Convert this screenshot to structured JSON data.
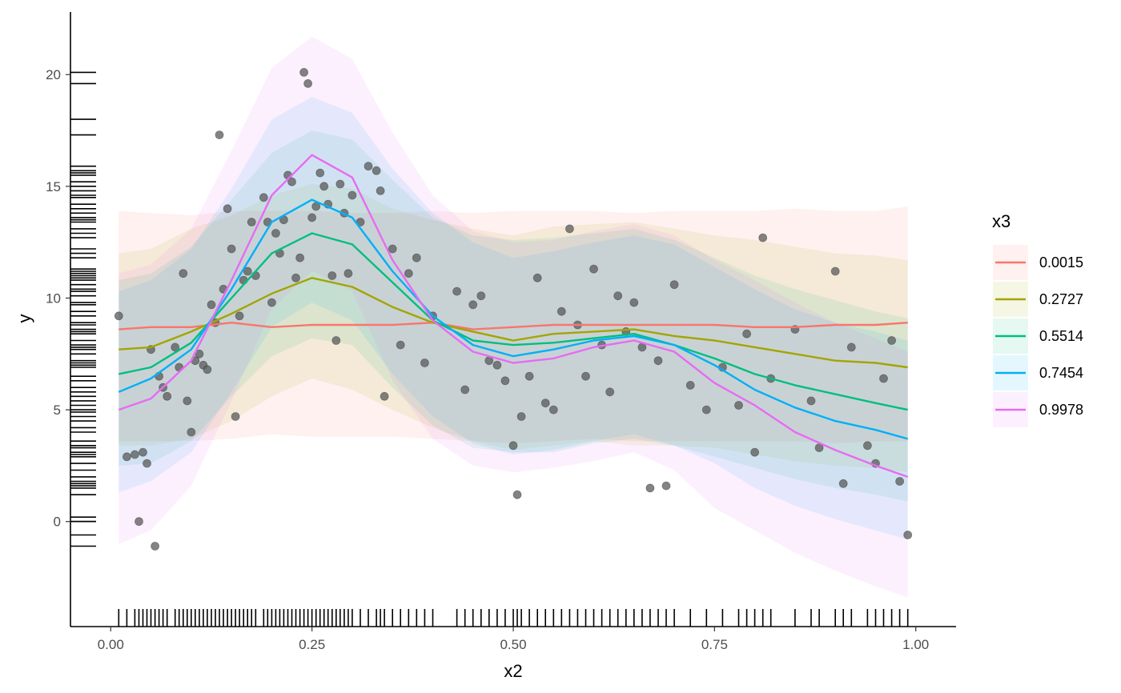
{
  "chart_data": {
    "type": "line",
    "xlabel": "x2",
    "ylabel": "y",
    "xlim": [
      -0.05,
      1.05
    ],
    "ylim": [
      -4.7,
      22.8
    ],
    "x_ticks": [
      {
        "value": 0.0,
        "label": "0.00"
      },
      {
        "value": 0.25,
        "label": "0.25"
      },
      {
        "value": 0.5,
        "label": "0.50"
      },
      {
        "value": 0.75,
        "label": "0.75"
      },
      {
        "value": 1.0,
        "label": "1.00"
      }
    ],
    "y_ticks": [
      {
        "value": 0,
        "label": "0"
      },
      {
        "value": 5,
        "label": "5"
      },
      {
        "value": 10,
        "label": "10"
      },
      {
        "value": 15,
        "label": "15"
      },
      {
        "value": 20,
        "label": "20"
      }
    ],
    "grid": false,
    "legend": {
      "title": "x3",
      "position": "right"
    },
    "series": [
      {
        "name": "0.0015",
        "color": "#F8766D",
        "x": [
          0.01,
          0.05,
          0.1,
          0.15,
          0.2,
          0.25,
          0.3,
          0.35,
          0.4,
          0.45,
          0.5,
          0.55,
          0.6,
          0.65,
          0.7,
          0.75,
          0.8,
          0.85,
          0.9,
          0.95,
          0.99
        ],
        "y": [
          8.6,
          8.7,
          8.7,
          8.9,
          8.7,
          8.8,
          8.8,
          8.8,
          8.9,
          8.6,
          8.7,
          8.8,
          8.8,
          8.8,
          8.8,
          8.8,
          8.7,
          8.7,
          8.8,
          8.8,
          8.9
        ],
        "lower": [
          3.6,
          3.6,
          3.6,
          3.7,
          3.9,
          3.8,
          3.8,
          3.8,
          3.7,
          3.6,
          3.5,
          3.6,
          3.7,
          3.6,
          3.6,
          3.6,
          3.6,
          3.6,
          3.5,
          3.6,
          3.6
        ],
        "upper": [
          13.9,
          13.8,
          13.7,
          13.9,
          13.9,
          13.9,
          13.8,
          13.8,
          13.9,
          13.8,
          13.9,
          13.9,
          13.9,
          13.8,
          13.9,
          13.9,
          13.9,
          14.0,
          13.9,
          13.9,
          14.1
        ]
      },
      {
        "name": "0.2727",
        "color": "#A3A500",
        "x": [
          0.01,
          0.05,
          0.1,
          0.15,
          0.2,
          0.25,
          0.3,
          0.35,
          0.4,
          0.45,
          0.5,
          0.55,
          0.6,
          0.65,
          0.7,
          0.75,
          0.8,
          0.85,
          0.9,
          0.95,
          0.99
        ],
        "y": [
          7.7,
          7.8,
          8.5,
          9.3,
          10.2,
          10.9,
          10.5,
          9.6,
          8.9,
          8.5,
          8.1,
          8.4,
          8.5,
          8.6,
          8.3,
          8.1,
          7.8,
          7.5,
          7.2,
          7.1,
          6.9
        ],
        "lower": [
          3.4,
          3.4,
          3.7,
          4.5,
          5.6,
          6.4,
          5.9,
          5.0,
          4.2,
          3.6,
          3.2,
          3.4,
          3.6,
          3.4,
          3.4,
          3.3,
          3.0,
          2.7,
          2.5,
          2.4,
          2.2
        ],
        "upper": [
          12.0,
          12.2,
          13.1,
          13.7,
          14.6,
          15.1,
          14.9,
          14.0,
          13.5,
          13.1,
          12.8,
          13.2,
          13.3,
          13.4,
          13.1,
          12.8,
          12.6,
          12.3,
          12.0,
          11.9,
          11.7
        ]
      },
      {
        "name": "0.5514",
        "color": "#00BF7D",
        "x": [
          0.01,
          0.05,
          0.1,
          0.15,
          0.2,
          0.25,
          0.3,
          0.35,
          0.4,
          0.45,
          0.5,
          0.55,
          0.6,
          0.65,
          0.7,
          0.75,
          0.8,
          0.85,
          0.9,
          0.95,
          0.99
        ],
        "y": [
          6.6,
          6.9,
          8.0,
          10.0,
          12.0,
          12.9,
          12.4,
          10.7,
          9.0,
          8.1,
          7.9,
          8.0,
          8.2,
          8.4,
          7.9,
          7.3,
          6.6,
          6.1,
          5.7,
          5.3,
          5.0
        ],
        "lower": [
          2.5,
          2.6,
          3.6,
          5.6,
          7.4,
          8.2,
          7.9,
          6.0,
          4.3,
          3.3,
          3.1,
          3.1,
          3.5,
          3.7,
          3.4,
          2.9,
          2.4,
          1.9,
          1.5,
          1.2,
          0.9
        ],
        "upper": [
          10.8,
          11.1,
          12.3,
          14.4,
          16.5,
          17.5,
          17.1,
          15.3,
          13.6,
          12.8,
          12.6,
          12.7,
          12.9,
          13.1,
          12.6,
          11.8,
          11.0,
          10.4,
          9.9,
          9.4,
          9.1
        ]
      },
      {
        "name": "0.7454",
        "color": "#00B0F6",
        "x": [
          0.01,
          0.05,
          0.1,
          0.15,
          0.2,
          0.25,
          0.3,
          0.35,
          0.4,
          0.45,
          0.5,
          0.55,
          0.6,
          0.65,
          0.7,
          0.75,
          0.8,
          0.85,
          0.9,
          0.95,
          0.99
        ],
        "y": [
          5.8,
          6.4,
          7.7,
          10.4,
          13.4,
          14.4,
          13.6,
          11.2,
          9.2,
          7.9,
          7.4,
          7.7,
          8.1,
          8.3,
          7.9,
          7.0,
          5.9,
          5.1,
          4.5,
          4.1,
          3.7
        ],
        "lower": [
          1.3,
          1.8,
          3.1,
          5.8,
          8.7,
          9.8,
          9.0,
          6.6,
          4.7,
          3.5,
          3.0,
          3.2,
          3.6,
          3.9,
          3.4,
          2.6,
          1.5,
          0.7,
          0.1,
          -0.4,
          -0.8
        ],
        "upper": [
          10.3,
          10.8,
          12.2,
          14.9,
          18.0,
          19.0,
          18.3,
          15.8,
          13.8,
          12.5,
          11.8,
          12.1,
          12.5,
          12.8,
          12.4,
          11.4,
          10.4,
          9.5,
          8.9,
          8.5,
          8.1
        ]
      },
      {
        "name": "0.9978",
        "color": "#E76BF3",
        "x": [
          0.01,
          0.05,
          0.1,
          0.15,
          0.2,
          0.25,
          0.3,
          0.35,
          0.4,
          0.45,
          0.5,
          0.55,
          0.6,
          0.65,
          0.7,
          0.75,
          0.8,
          0.85,
          0.9,
          0.95,
          0.99
        ],
        "y": [
          5.0,
          5.5,
          7.2,
          10.8,
          14.6,
          16.4,
          15.4,
          11.7,
          9.0,
          7.6,
          7.1,
          7.3,
          7.8,
          8.1,
          7.6,
          6.2,
          5.2,
          4.0,
          3.2,
          2.5,
          2.0
        ],
        "lower": [
          -1.0,
          -0.4,
          1.6,
          5.4,
          9.5,
          11.2,
          10.3,
          6.3,
          3.7,
          2.5,
          2.2,
          2.4,
          2.7,
          3.1,
          2.3,
          0.6,
          -0.4,
          -1.4,
          -2.2,
          -2.9,
          -3.4
        ],
        "upper": [
          11.1,
          11.5,
          13.1,
          16.6,
          20.3,
          21.7,
          20.7,
          17.4,
          14.6,
          13.0,
          12.5,
          12.6,
          13.0,
          13.3,
          12.8,
          11.7,
          10.8,
          9.8,
          8.9,
          8.2,
          7.6
        ]
      }
    ],
    "points": {
      "color": "#595959",
      "x": [
        0.01,
        0.02,
        0.03,
        0.035,
        0.04,
        0.045,
        0.05,
        0.055,
        0.06,
        0.065,
        0.07,
        0.08,
        0.085,
        0.09,
        0.095,
        0.1,
        0.105,
        0.11,
        0.115,
        0.12,
        0.125,
        0.13,
        0.135,
        0.14,
        0.145,
        0.15,
        0.155,
        0.16,
        0.165,
        0.17,
        0.175,
        0.18,
        0.19,
        0.195,
        0.2,
        0.205,
        0.21,
        0.215,
        0.22,
        0.225,
        0.23,
        0.235,
        0.24,
        0.245,
        0.25,
        0.255,
        0.26,
        0.265,
        0.27,
        0.275,
        0.28,
        0.285,
        0.29,
        0.295,
        0.3,
        0.31,
        0.32,
        0.33,
        0.335,
        0.34,
        0.35,
        0.36,
        0.37,
        0.38,
        0.39,
        0.4,
        0.43,
        0.44,
        0.45,
        0.46,
        0.47,
        0.48,
        0.49,
        0.5,
        0.505,
        0.51,
        0.52,
        0.53,
        0.54,
        0.55,
        0.56,
        0.57,
        0.58,
        0.59,
        0.6,
        0.61,
        0.62,
        0.63,
        0.64,
        0.65,
        0.66,
        0.67,
        0.68,
        0.69,
        0.7,
        0.72,
        0.74,
        0.76,
        0.78,
        0.79,
        0.8,
        0.81,
        0.82,
        0.85,
        0.87,
        0.88,
        0.9,
        0.91,
        0.92,
        0.94,
        0.95,
        0.96,
        0.97,
        0.98,
        0.99
      ],
      "y": [
        9.2,
        2.9,
        3.0,
        0.0,
        3.1,
        2.6,
        7.7,
        -1.1,
        6.5,
        6.0,
        5.6,
        7.8,
        6.9,
        11.1,
        5.4,
        4.0,
        7.2,
        7.5,
        7.0,
        6.8,
        9.7,
        8.9,
        17.3,
        10.4,
        14.0,
        12.2,
        4.7,
        9.2,
        10.8,
        11.2,
        13.4,
        11.0,
        14.5,
        13.4,
        9.8,
        12.9,
        12.0,
        13.5,
        15.5,
        15.2,
        10.9,
        11.8,
        20.1,
        19.6,
        13.6,
        14.1,
        15.6,
        15.0,
        14.2,
        11.0,
        8.1,
        15.1,
        13.8,
        11.1,
        14.6,
        13.4,
        15.9,
        15.7,
        14.8,
        5.6,
        12.2,
        7.9,
        11.1,
        11.8,
        7.1,
        9.2,
        10.3,
        5.9,
        9.7,
        10.1,
        7.2,
        7.0,
        6.3,
        3.4,
        1.2,
        4.7,
        6.5,
        10.9,
        5.3,
        5.0,
        9.4,
        13.1,
        8.8,
        6.5,
        11.3,
        7.9,
        5.8,
        10.1,
        8.5,
        9.8,
        7.8,
        1.5,
        7.2,
        1.6,
        10.6,
        6.1,
        5.0,
        6.9,
        5.2,
        8.4,
        3.1,
        12.7,
        6.4,
        8.6,
        5.4,
        3.3,
        11.2,
        1.7,
        7.8,
        3.4,
        2.6,
        6.4,
        8.1,
        1.8,
        -0.6
      ]
    },
    "rug_x": [
      0.01,
      0.02,
      0.03,
      0.035,
      0.04,
      0.045,
      0.05,
      0.055,
      0.06,
      0.065,
      0.07,
      0.08,
      0.085,
      0.09,
      0.095,
      0.1,
      0.105,
      0.11,
      0.115,
      0.12,
      0.125,
      0.13,
      0.135,
      0.14,
      0.145,
      0.15,
      0.155,
      0.16,
      0.165,
      0.17,
      0.175,
      0.18,
      0.19,
      0.195,
      0.2,
      0.205,
      0.21,
      0.215,
      0.22,
      0.225,
      0.23,
      0.235,
      0.24,
      0.245,
      0.25,
      0.255,
      0.26,
      0.265,
      0.27,
      0.275,
      0.28,
      0.285,
      0.29,
      0.295,
      0.3,
      0.31,
      0.32,
      0.33,
      0.335,
      0.34,
      0.35,
      0.36,
      0.37,
      0.38,
      0.39,
      0.4,
      0.43,
      0.44,
      0.45,
      0.46,
      0.47,
      0.48,
      0.49,
      0.5,
      0.505,
      0.51,
      0.52,
      0.53,
      0.54,
      0.55,
      0.56,
      0.57,
      0.58,
      0.59,
      0.6,
      0.61,
      0.62,
      0.63,
      0.64,
      0.65,
      0.66,
      0.67,
      0.68,
      0.69,
      0.7,
      0.72,
      0.74,
      0.76,
      0.78,
      0.79,
      0.8,
      0.81,
      0.82,
      0.85,
      0.87,
      0.88,
      0.9,
      0.91,
      0.92,
      0.94,
      0.95,
      0.96,
      0.97,
      0.98,
      0.99
    ],
    "rug_y": [
      -1.1,
      -0.6,
      0.0,
      0.0,
      0.2,
      1.2,
      1.5,
      1.6,
      1.7,
      1.8,
      2.0,
      2.3,
      2.6,
      2.9,
      3.0,
      3.1,
      3.3,
      3.4,
      3.6,
      4.0,
      4.2,
      4.5,
      4.7,
      4.9,
      5.0,
      5.2,
      5.4,
      5.6,
      5.8,
      6.0,
      6.3,
      6.5,
      6.9,
      7.0,
      7.1,
      7.2,
      7.5,
      7.7,
      7.8,
      7.9,
      8.1,
      8.4,
      8.5,
      8.6,
      8.8,
      8.9,
      9.2,
      9.4,
      9.7,
      9.8,
      10.1,
      10.3,
      10.4,
      10.6,
      10.8,
      10.9,
      11.0,
      11.1,
      11.2,
      11.3,
      11.8,
      12.0,
      12.2,
      12.7,
      12.9,
      13.1,
      13.4,
      13.5,
      13.6,
      13.8,
      14.0,
      14.2,
      14.5,
      14.6,
      14.8,
      15.0,
      15.2,
      15.5,
      15.6,
      15.7,
      15.9,
      17.3,
      18.0,
      19.6,
      20.1
    ]
  }
}
